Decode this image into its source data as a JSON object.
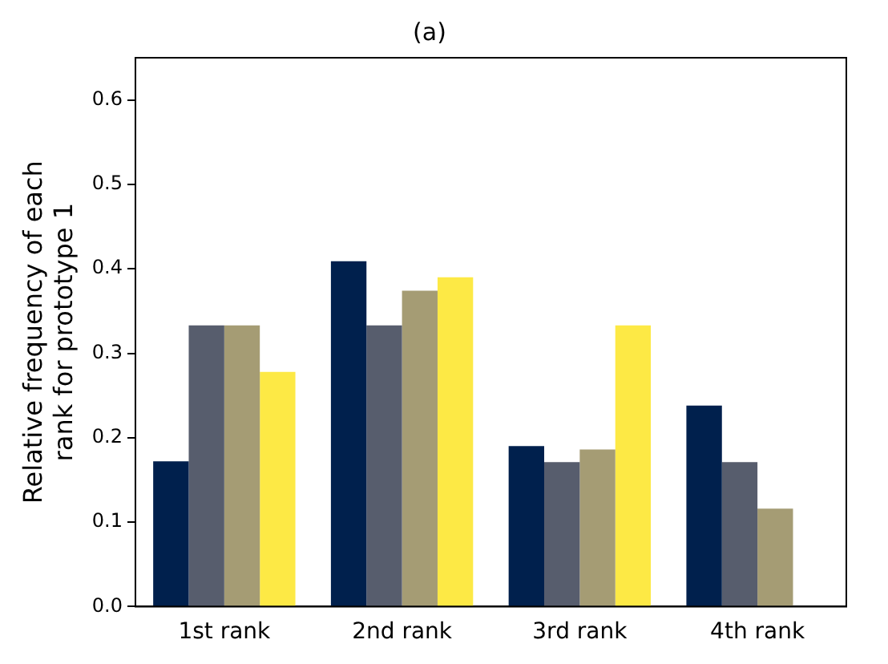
{
  "chart_data": {
    "type": "bar",
    "title": "(a)",
    "ylabel": "Relative frequency of each\nrank for prototype 1",
    "categories": [
      "1st rank",
      "2nd rank",
      "3rd rank",
      "4th rank"
    ],
    "series": [
      {
        "color": "#00204d",
        "values": [
          0.172,
          0.409,
          0.19,
          0.238
        ]
      },
      {
        "color": "#575d6d",
        "values": [
          0.333,
          0.333,
          0.171,
          0.171
        ]
      },
      {
        "color": "#a59c74",
        "values": [
          0.333,
          0.374,
          0.186,
          0.116
        ]
      },
      {
        "color": "#fde945",
        "values": [
          0.278,
          0.39,
          0.333,
          0
        ]
      }
    ],
    "ylim": [
      0,
      0.65
    ],
    "yticks": [
      {
        "value": 0,
        "label": "0.0"
      },
      0.1,
      0.2,
      0.3,
      0.4,
      0.5,
      0.6
    ],
    "grid": false,
    "legend": false
  }
}
